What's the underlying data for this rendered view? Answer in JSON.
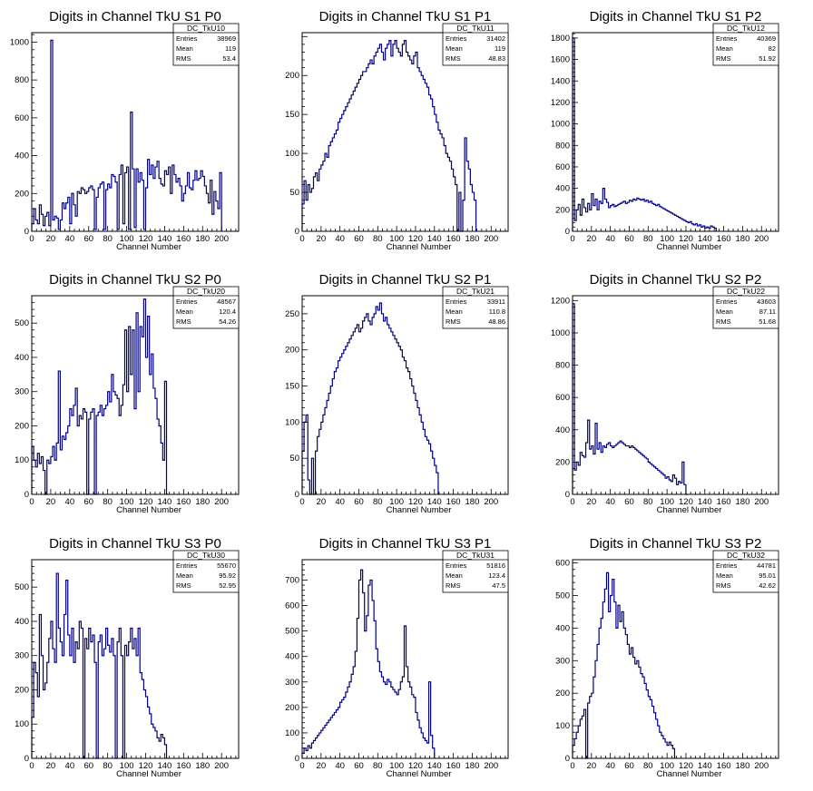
{
  "chart_data": [
    {
      "type": "histogram",
      "title": "Digits in Channel TkU S1 P0",
      "xlabel": "Channel Number",
      "ylabel": "",
      "xlim": [
        0,
        218
      ],
      "ylim": [
        0,
        1050
      ],
      "xticks": [
        0,
        20,
        40,
        60,
        80,
        100,
        120,
        140,
        160,
        180,
        200
      ],
      "yticks": [
        200,
        400,
        600,
        800,
        1000
      ],
      "stats": {
        "name": "DC_TkU10",
        "rows": [
          [
            "Entries",
            "38969"
          ],
          [
            "Mean",
            "119"
          ],
          [
            "RMS",
            "53.4"
          ]
        ]
      },
      "x_start": 0,
      "bin_width": 2,
      "values": [
        40,
        120,
        60,
        40,
        140,
        90,
        30,
        80,
        100,
        30,
        1010,
        60,
        80,
        70,
        10,
        60,
        150,
        120,
        150,
        180,
        40,
        200,
        140,
        80,
        210,
        200,
        230,
        220,
        200,
        210,
        230,
        240,
        220,
        10,
        180,
        230,
        250,
        260,
        10,
        220,
        250,
        230,
        300,
        290,
        260,
        10,
        300,
        350,
        40,
        310,
        340,
        10,
        630,
        330,
        20,
        330,
        260,
        310,
        270,
        10,
        230,
        380,
        300,
        350,
        280,
        340,
        370,
        280,
        250,
        240,
        320,
        300,
        340,
        200,
        350,
        300,
        260,
        280,
        240,
        160,
        200,
        240,
        310,
        230,
        220,
        270,
        320,
        270,
        280,
        320,
        290,
        240,
        200,
        150,
        270,
        90,
        210,
        160,
        120,
        310
      ]
    },
    {
      "type": "histogram",
      "title": "Digits in Channel TkU S1 P1",
      "xlabel": "Channel Number",
      "ylabel": "",
      "xlim": [
        0,
        218
      ],
      "ylim": [
        0,
        255
      ],
      "xticks": [
        0,
        20,
        40,
        60,
        80,
        100,
        120,
        140,
        160,
        180,
        200
      ],
      "yticks": [
        50,
        100,
        150,
        200
      ],
      "stats": {
        "name": "DC_TkU11",
        "rows": [
          [
            "Entries",
            "31402"
          ],
          [
            "Mean",
            "119"
          ],
          [
            "RMS",
            "48.83"
          ]
        ]
      },
      "x_start": 0,
      "bin_width": 2,
      "values": [
        35,
        65,
        40,
        60,
        50,
        55,
        70,
        75,
        65,
        80,
        85,
        90,
        100,
        95,
        110,
        115,
        120,
        125,
        130,
        140,
        145,
        150,
        155,
        160,
        165,
        170,
        175,
        180,
        185,
        190,
        195,
        200,
        205,
        205,
        210,
        215,
        220,
        215,
        225,
        230,
        235,
        240,
        230,
        220,
        235,
        240,
        245,
        225,
        240,
        245,
        235,
        230,
        225,
        240,
        245,
        230,
        225,
        220,
        215,
        225,
        230,
        210,
        205,
        200,
        195,
        190,
        185,
        175,
        170,
        160,
        150,
        140,
        130,
        125,
        120,
        110,
        100,
        95,
        90,
        80,
        70,
        60,
        0,
        50,
        0,
        40,
        120,
        90,
        80,
        60,
        50,
        40
      ]
    },
    {
      "type": "histogram",
      "title": "Digits in Channel TkU S1 P2",
      "xlabel": "Channel Number",
      "ylabel": "",
      "xlim": [
        0,
        218
      ],
      "ylim": [
        0,
        1850
      ],
      "xticks": [
        0,
        20,
        40,
        60,
        80,
        100,
        120,
        140,
        160,
        180,
        200
      ],
      "yticks": [
        200,
        400,
        600,
        800,
        1000,
        1200,
        1400,
        1600,
        1800
      ],
      "stats": {
        "name": "DC_TkU12",
        "rows": [
          [
            "Entries",
            "40369"
          ],
          [
            "Mean",
            "82"
          ],
          [
            "RMS",
            "51.92"
          ]
        ]
      },
      "x_start": 0,
      "bin_width": 2,
      "values": [
        1800,
        100,
        200,
        250,
        150,
        300,
        220,
        180,
        260,
        200,
        350,
        240,
        300,
        200,
        280,
        260,
        400,
        300,
        270,
        220,
        240,
        250,
        230,
        240,
        250,
        260,
        270,
        280,
        260,
        270,
        290,
        280,
        300,
        290,
        310,
        300,
        290,
        300,
        280,
        290,
        270,
        280,
        260,
        250,
        240,
        250,
        230,
        220,
        210,
        200,
        190,
        180,
        170,
        160,
        150,
        140,
        130,
        120,
        110,
        100,
        90,
        80,
        90,
        70,
        60,
        70,
        50,
        60,
        40,
        50,
        30,
        40,
        30,
        50,
        40,
        30
      ]
    },
    {
      "type": "histogram",
      "title": "Digits in Channel TkU S2 P0",
      "xlabel": "Channel Number",
      "ylabel": "",
      "xlim": [
        0,
        218
      ],
      "ylim": [
        0,
        580
      ],
      "xticks": [
        0,
        20,
        40,
        60,
        80,
        100,
        120,
        140,
        160,
        180,
        200
      ],
      "yticks": [
        100,
        200,
        300,
        400,
        500
      ],
      "stats": {
        "name": "DC_TkU20",
        "rows": [
          [
            "Entries",
            "48567"
          ],
          [
            "Mean",
            "120.4"
          ],
          [
            "RMS",
            "54.26"
          ]
        ]
      },
      "x_start": 0,
      "bin_width": 2,
      "values": [
        140,
        100,
        80,
        120,
        90,
        110,
        70,
        0,
        100,
        90,
        110,
        140,
        100,
        150,
        360,
        130,
        170,
        160,
        180,
        200,
        250,
        230,
        260,
        310,
        200,
        230,
        220,
        250,
        240,
        0,
        220,
        240,
        250,
        0,
        230,
        240,
        260,
        230,
        250,
        260,
        300,
        270,
        350,
        300,
        290,
        280,
        230,
        260,
        320,
        480,
        300,
        490,
        350,
        480,
        250,
        530,
        300,
        490,
        460,
        570,
        400,
        520,
        350,
        410,
        310,
        280,
        220,
        200,
        150,
        100,
        330,
        0
      ]
    },
    {
      "type": "histogram",
      "title": "Digits in Channel TkU S2 P1",
      "xlabel": "Channel Number",
      "ylabel": "",
      "xlim": [
        0,
        218
      ],
      "ylim": [
        0,
        275
      ],
      "xticks": [
        0,
        20,
        40,
        60,
        80,
        100,
        120,
        140,
        160,
        180,
        200
      ],
      "yticks": [
        50,
        100,
        150,
        200,
        250
      ],
      "stats": {
        "name": "DC_TkU21",
        "rows": [
          [
            "Entries",
            "33911"
          ],
          [
            "Mean",
            "110.8"
          ],
          [
            "RMS",
            "48.86"
          ]
        ]
      },
      "x_start": 0,
      "bin_width": 2,
      "values": [
        60,
        100,
        110,
        20,
        0,
        50,
        0,
        60,
        80,
        90,
        100,
        110,
        120,
        130,
        140,
        150,
        160,
        170,
        175,
        185,
        190,
        195,
        200,
        205,
        210,
        215,
        220,
        225,
        230,
        235,
        225,
        230,
        240,
        245,
        250,
        240,
        235,
        245,
        250,
        260,
        255,
        265,
        250,
        240,
        245,
        235,
        230,
        225,
        220,
        215,
        210,
        205,
        200,
        190,
        185,
        175,
        170,
        160,
        150,
        140,
        130,
        120,
        110,
        100,
        90,
        80,
        75,
        70,
        60,
        50,
        40,
        30
      ]
    },
    {
      "type": "histogram",
      "title": "Digits in Channel TkU S2 P2",
      "xlabel": "Channel Number",
      "ylabel": "",
      "xlim": [
        0,
        218
      ],
      "ylim": [
        0,
        1230
      ],
      "xticks": [
        0,
        20,
        40,
        60,
        80,
        100,
        120,
        140,
        160,
        180,
        200
      ],
      "yticks": [
        200,
        400,
        600,
        800,
        1000,
        1200
      ],
      "stats": {
        "name": "DC_TkU22",
        "rows": [
          [
            "Entries",
            "43603"
          ],
          [
            "Mean",
            "87.11"
          ],
          [
            "RMS",
            "51.68"
          ]
        ]
      },
      "x_start": 0,
      "bin_width": 2,
      "values": [
        1180,
        150,
        200,
        180,
        260,
        240,
        230,
        320,
        460,
        280,
        300,
        250,
        440,
        280,
        320,
        260,
        300,
        290,
        310,
        320,
        300,
        290,
        300,
        310,
        320,
        330,
        320,
        310,
        300,
        300,
        290,
        300,
        290,
        280,
        270,
        260,
        250,
        240,
        230,
        220,
        200,
        190,
        180,
        170,
        160,
        150,
        140,
        130,
        120,
        100,
        110,
        90,
        80,
        120,
        100,
        60,
        80,
        70,
        200,
        60,
        0
      ]
    },
    {
      "type": "histogram",
      "title": "Digits in Channel TkU S3 P0",
      "xlabel": "Channel Number",
      "ylabel": "",
      "xlim": [
        0,
        218
      ],
      "ylim": [
        0,
        580
      ],
      "xticks": [
        0,
        20,
        40,
        60,
        80,
        100,
        120,
        140,
        160,
        180,
        200
      ],
      "yticks": [
        100,
        200,
        300,
        400,
        500
      ],
      "stats": {
        "name": "DC_TkU30",
        "rows": [
          [
            "Entries",
            "55670"
          ],
          [
            "Mean",
            "95.92"
          ],
          [
            "RMS",
            "52.95"
          ]
        ]
      },
      "x_start": 0,
      "bin_width": 2,
      "values": [
        120,
        280,
        250,
        180,
        420,
        300,
        200,
        220,
        280,
        350,
        400,
        320,
        280,
        540,
        380,
        340,
        300,
        420,
        520,
        360,
        300,
        380,
        280,
        340,
        320,
        400,
        380,
        0,
        350,
        320,
        380,
        340,
        360,
        280,
        0,
        340,
        360,
        300,
        320,
        380,
        330,
        310,
        350,
        300,
        0,
        340,
        380,
        300,
        0,
        330,
        300,
        340,
        380,
        320,
        350,
        300,
        380,
        250,
        230,
        200,
        180,
        150,
        130,
        100,
        90,
        80,
        60,
        50,
        70,
        60,
        40
      ]
    },
    {
      "type": "histogram",
      "title": "Digits in Channel TkU S3 P1",
      "xlabel": "Channel Number",
      "ylabel": "",
      "xlim": [
        0,
        218
      ],
      "ylim": [
        0,
        780
      ],
      "xticks": [
        0,
        20,
        40,
        60,
        80,
        100,
        120,
        140,
        160,
        180,
        200
      ],
      "yticks": [
        100,
        200,
        300,
        400,
        500,
        600,
        700
      ],
      "stats": {
        "name": "DC_TkU31",
        "rows": [
          [
            "Entries",
            "51816"
          ],
          [
            "Mean",
            "123.4"
          ],
          [
            "RMS",
            "47.5"
          ]
        ]
      },
      "x_start": 0,
      "bin_width": 2,
      "values": [
        20,
        40,
        30,
        50,
        40,
        60,
        70,
        80,
        90,
        100,
        110,
        120,
        130,
        140,
        150,
        160,
        170,
        180,
        190,
        200,
        220,
        230,
        240,
        260,
        280,
        300,
        330,
        360,
        420,
        550,
        700,
        740,
        650,
        500,
        560,
        680,
        700,
        620,
        540,
        430,
        380,
        340,
        320,
        300,
        290,
        310,
        300,
        280,
        270,
        260,
        250,
        270,
        300,
        320,
        520,
        360,
        300,
        280,
        250,
        240,
        180,
        150,
        120,
        100,
        80,
        70,
        60,
        300,
        90,
        40
      ]
    },
    {
      "type": "histogram",
      "title": "Digits in Channel TkU S3 P2",
      "xlabel": "Channel Number",
      "ylabel": "",
      "xlim": [
        0,
        218
      ],
      "ylim": [
        0,
        610
      ],
      "xticks": [
        0,
        20,
        40,
        60,
        80,
        100,
        120,
        140,
        160,
        180,
        200
      ],
      "yticks": [
        100,
        200,
        300,
        400,
        500,
        600
      ],
      "stats": {
        "name": "DC_TkU32",
        "rows": [
          [
            "Entries",
            "44781"
          ],
          [
            "Mean",
            "95.01"
          ],
          [
            "RMS",
            "42.62"
          ]
        ]
      },
      "x_start": 0,
      "bin_width": 2,
      "values": [
        40,
        60,
        80,
        100,
        120,
        130,
        150,
        0,
        170,
        190,
        200,
        250,
        300,
        350,
        400,
        430,
        480,
        520,
        570,
        450,
        500,
        550,
        480,
        400,
        470,
        420,
        450,
        400,
        380,
        350,
        320,
        340,
        310,
        290,
        300,
        280,
        260,
        250,
        230,
        210,
        190,
        180,
        160,
        140,
        120,
        100,
        80,
        70,
        60,
        50,
        40,
        50,
        40,
        30
      ]
    }
  ]
}
